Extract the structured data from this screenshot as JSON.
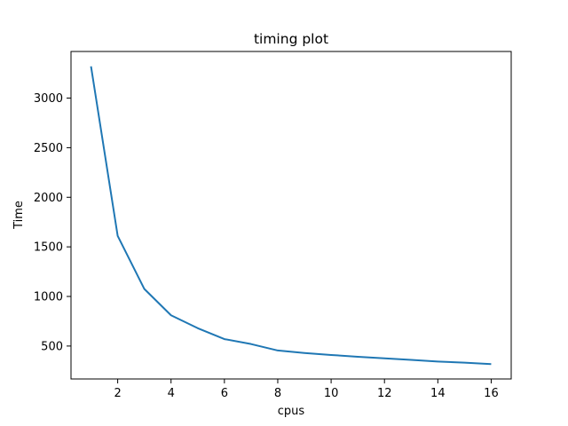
{
  "chart_data": {
    "type": "line",
    "title": "timing plot",
    "xlabel": "cpus",
    "ylabel": "Time",
    "x": [
      1,
      2,
      3,
      4,
      5,
      6,
      7,
      8,
      9,
      10,
      11,
      12,
      13,
      14,
      15,
      16
    ],
    "series": [
      {
        "values": [
          3320,
          1610,
          1075,
          810,
          680,
          570,
          520,
          455,
          430,
          410,
          392,
          376,
          360,
          344,
          332,
          318
        ],
        "color": "#1f77b4"
      }
    ],
    "xlim": [
      0.25,
      16.75
    ],
    "ylim": [
      168,
      3470
    ],
    "xticks": [
      2,
      4,
      6,
      8,
      10,
      12,
      14,
      16
    ],
    "yticks": [
      500,
      1000,
      1500,
      2000,
      2500,
      3000
    ],
    "xtick_labels": [
      "2",
      "4",
      "6",
      "8",
      "10",
      "12",
      "14",
      "16"
    ],
    "ytick_labels": [
      "500",
      "1000",
      "1500",
      "2000",
      "2500",
      "3000"
    ],
    "grid": false,
    "legend": false
  }
}
